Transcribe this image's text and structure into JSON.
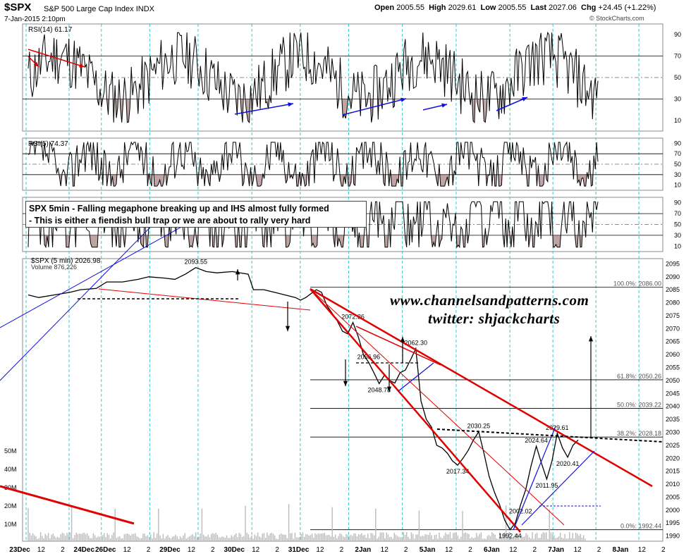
{
  "header": {
    "symbol": "$SPX",
    "name": "S&P 500 Large Cap Index",
    "exchange": "INDX",
    "datetime": "7-Jan-2015 2:10pm",
    "open_label": "Open",
    "open": "2005.55",
    "high_label": "High",
    "high": "2029.61",
    "low_label": "Low",
    "low": "2005.55",
    "last_label": "Last",
    "last": "2027.06",
    "chg_label": "Chg",
    "chg": "+24.45 (+1.22%)",
    "credit": "© StockCharts.com"
  },
  "note": {
    "line1": "SPX 5min - Falling megaphone breaking up and IHS almost fully formed",
    "line2": "- This is either a fiendish bull trap or we are about to rally very hard"
  },
  "watermark": {
    "line1": "www.channelsandpatterns.com",
    "line2": "twitter: shjackcharts"
  },
  "colors": {
    "price": "#000000",
    "trendline_red": "#e00000",
    "trendline_blue": "#1010e0",
    "day_separator": "#33cccc",
    "oversold_fill": "#8b5a5a"
  },
  "chart_data": [
    {
      "type": "line",
      "panel": "RSI(14)",
      "title": "RSI(14) 61.17",
      "yticks": [
        90,
        70,
        50,
        30,
        10
      ],
      "ylim": [
        0,
        100
      ],
      "last": 61.17
    },
    {
      "type": "line",
      "panel": "RSI(5)",
      "title": "RSI(5) 74.37",
      "yticks": [
        90,
        70,
        50,
        30,
        10
      ],
      "ylim": [
        0,
        100
      ],
      "last": 74.37
    },
    {
      "type": "line",
      "panel": "RSI(3)",
      "yticks": [
        90,
        70,
        50,
        30,
        10
      ],
      "ylim": [
        0,
        100
      ]
    },
    {
      "type": "line",
      "panel": "price",
      "title": "$SPX (5 min) 2026.98",
      "volume_label": "Volume 876,226",
      "ylim": [
        1988,
        2097
      ],
      "yticks": [
        2095,
        2090,
        2085,
        2080,
        2075,
        2070,
        2065,
        2060,
        2055,
        2050,
        2045,
        2040,
        2035,
        2030,
        2025,
        2020,
        2015,
        2010,
        2005,
        2000,
        1995,
        1990
      ],
      "volume_ticks": [
        "50M",
        "40M",
        "30M",
        "20M",
        "10M"
      ],
      "x_labels": [
        "23Dec",
        "12",
        "2",
        "24Dec",
        "26Dec",
        "12",
        "2",
        "29Dec",
        "12",
        "2",
        "30Dec",
        "12",
        "2",
        "31Dec",
        "12",
        "2",
        "2Jan",
        "12",
        "2",
        "5Jan",
        "12",
        "2",
        "6Jan",
        "12",
        "2",
        "7Jan",
        "12",
        "2",
        "8Jan",
        "12",
        "2"
      ],
      "points": [
        {
          "t": 0,
          "v": 2083
        },
        {
          "t": 2,
          "v": 2082
        },
        {
          "t": 5,
          "v": 2083
        },
        {
          "t": 8,
          "v": 2084
        },
        {
          "t": 10,
          "v": 2085
        },
        {
          "t": 13,
          "v": 2085.5
        },
        {
          "t": 15,
          "v": 2088
        },
        {
          "t": 18,
          "v": 2088
        },
        {
          "t": 21,
          "v": 2089
        },
        {
          "t": 23,
          "v": 2090
        },
        {
          "t": 26,
          "v": 2089.5
        },
        {
          "t": 28,
          "v": 2089
        },
        {
          "t": 30,
          "v": 2091
        },
        {
          "t": 32,
          "v": 2093.55
        },
        {
          "t": 34,
          "v": 2092
        },
        {
          "t": 36,
          "v": 2091.5
        },
        {
          "t": 39,
          "v": 2092
        },
        {
          "t": 42,
          "v": 2091
        },
        {
          "t": 43,
          "v": 2085
        },
        {
          "t": 45,
          "v": 2085
        },
        {
          "t": 47,
          "v": 2084
        },
        {
          "t": 49,
          "v": 2083
        },
        {
          "t": 51,
          "v": 2082
        },
        {
          "t": 52,
          "v": 2081
        },
        {
          "t": 53,
          "v": 2082
        },
        {
          "t": 55,
          "v": 2085
        },
        {
          "t": 56,
          "v": 2084
        },
        {
          "t": 57,
          "v": 2079
        },
        {
          "t": 58,
          "v": 2076
        },
        {
          "t": 59,
          "v": 2073
        },
        {
          "t": 60,
          "v": 2069
        },
        {
          "t": 61,
          "v": 2068
        },
        {
          "t": 62,
          "v": 2072.36
        },
        {
          "t": 63,
          "v": 2067
        },
        {
          "t": 64,
          "v": 2060
        },
        {
          "t": 65,
          "v": 2056.96
        },
        {
          "t": 66,
          "v": 2053
        },
        {
          "t": 67,
          "v": 2048.78
        },
        {
          "t": 68,
          "v": 2052
        },
        {
          "t": 69,
          "v": 2050
        },
        {
          "t": 70,
          "v": 2049
        },
        {
          "t": 71,
          "v": 2053
        },
        {
          "t": 72,
          "v": 2054
        },
        {
          "t": 73,
          "v": 2058
        },
        {
          "t": 74,
          "v": 2062.3
        },
        {
          "t": 75,
          "v": 2042
        },
        {
          "t": 76,
          "v": 2035
        },
        {
          "t": 77,
          "v": 2032
        },
        {
          "t": 78,
          "v": 2025
        },
        {
          "t": 79,
          "v": 2024
        },
        {
          "t": 80,
          "v": 2022
        },
        {
          "t": 81,
          "v": 2019
        },
        {
          "t": 82,
          "v": 2017.34
        },
        {
          "t": 83,
          "v": 2020
        },
        {
          "t": 84,
          "v": 2023
        },
        {
          "t": 85,
          "v": 2027
        },
        {
          "t": 86,
          "v": 2030.25
        },
        {
          "t": 87,
          "v": 2022
        },
        {
          "t": 88,
          "v": 2013
        },
        {
          "t": 89,
          "v": 2007
        },
        {
          "t": 90,
          "v": 2002
        },
        {
          "t": 91,
          "v": 1996
        },
        {
          "t": 92,
          "v": 1992.44
        },
        {
          "t": 93,
          "v": 1995
        },
        {
          "t": 94,
          "v": 2002.02
        },
        {
          "t": 95,
          "v": 2008
        },
        {
          "t": 96,
          "v": 2017
        },
        {
          "t": 97,
          "v": 2024.64
        },
        {
          "t": 98,
          "v": 2018
        },
        {
          "t": 99,
          "v": 2011.95
        },
        {
          "t": 100,
          "v": 2019
        },
        {
          "t": 101,
          "v": 2029.61
        },
        {
          "t": 102,
          "v": 2024
        },
        {
          "t": 103,
          "v": 2020.41
        },
        {
          "t": 104,
          "v": 2025
        },
        {
          "t": 105,
          "v": 2027.06
        }
      ],
      "annotations": [
        "2093.55",
        "2072.36",
        "2062.30",
        "2056.96",
        "2048.78",
        "2030.25",
        "2017.34",
        "2029.61",
        "2024.64",
        "2020.41",
        "2011.95",
        "2002.02",
        "1992.44"
      ],
      "fib_levels": [
        {
          "label": "100.0%: 2086.00",
          "value": 2086.0
        },
        {
          "label": "61.8%: 2050.26",
          "value": 2050.26
        },
        {
          "label": "50.0%: 2039.22",
          "value": 2039.22
        },
        {
          "label": "38.2%: 2028.18",
          "value": 2028.18
        },
        {
          "label": "0.0%: 1992.44",
          "value": 1992.44
        }
      ]
    }
  ]
}
